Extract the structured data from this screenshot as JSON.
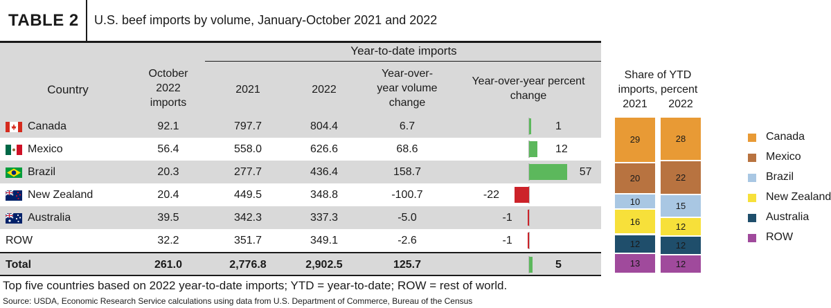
{
  "table_tag": "TABLE 2",
  "title": "U.S. beef imports by volume, January-October 2021 and 2022",
  "header": {
    "ytd_group": "Year-to-date imports",
    "country": "Country",
    "october": [
      "October",
      "2022",
      "imports"
    ],
    "y2021": "2021",
    "y2022": "2022",
    "volume_change": [
      "Year-over-",
      "year volume",
      "change"
    ],
    "pct_change": [
      "Year-over-year percent",
      "change"
    ]
  },
  "rows": [
    {
      "country": "Canada",
      "flag": "canada-flag-icon",
      "october": "92.1",
      "y2021": "797.7",
      "y2022": "804.4",
      "change": "6.7",
      "pct": 1,
      "pct_label": "1"
    },
    {
      "country": "Mexico",
      "flag": "mexico-flag-icon",
      "october": "56.4",
      "y2021": "558.0",
      "y2022": "626.6",
      "change": "68.6",
      "pct": 12,
      "pct_label": "12"
    },
    {
      "country": "Brazil",
      "flag": "brazil-flag-icon",
      "october": "20.3",
      "y2021": "277.7",
      "y2022": "436.4",
      "change": "158.7",
      "pct": 57,
      "pct_label": "57"
    },
    {
      "country": "New Zealand",
      "flag": "new-zealand-flag-icon",
      "october": "20.4",
      "y2021": "449.5",
      "y2022": "348.8",
      "change": "-100.7",
      "pct": -22,
      "pct_label": "-22"
    },
    {
      "country": "Australia",
      "flag": "australia-flag-icon",
      "october": "39.5",
      "y2021": "342.3",
      "y2022": "337.3",
      "change": "-5.0",
      "pct": -1,
      "pct_label": "-1"
    },
    {
      "country": "ROW",
      "flag": "",
      "october": "32.2",
      "y2021": "351.7",
      "y2022": "349.1",
      "change": "-2.6",
      "pct": -1,
      "pct_label": "-1"
    }
  ],
  "total": {
    "country": "Total",
    "october": "261.0",
    "y2021": "2,776.8",
    "y2022": "2,902.5",
    "change": "125.7",
    "pct": 5,
    "pct_label": "5"
  },
  "chart_data": [
    {
      "type": "bar",
      "orientation": "horizontal",
      "title": "Year-over-year percent change",
      "categories": [
        "Canada",
        "Mexico",
        "Brazil",
        "New Zealand",
        "Australia",
        "ROW",
        "Total"
      ],
      "values": [
        1,
        12,
        57,
        -22,
        -1,
        -1,
        5
      ],
      "colors": {
        "positive": "#5cb85c",
        "negative": "#cc2229"
      }
    },
    {
      "type": "bar",
      "stacked": true,
      "title": "Share of YTD imports, percent",
      "categories": [
        "2021",
        "2022"
      ],
      "series": [
        {
          "name": "Canada",
          "color": "#e89a35",
          "values": [
            29,
            28
          ]
        },
        {
          "name": "Mexico",
          "color": "#b87340",
          "values": [
            20,
            22
          ]
        },
        {
          "name": "Brazil",
          "color": "#a9c7e3",
          "values": [
            10,
            15
          ]
        },
        {
          "name": "New Zealand",
          "color": "#f7e03a",
          "values": [
            16,
            12
          ]
        },
        {
          "name": "Australia",
          "color": "#1f4e6b",
          "values": [
            12,
            12
          ]
        },
        {
          "name": "ROW",
          "color": "#a04a9c",
          "values": [
            13,
            12
          ]
        }
      ],
      "legend_position": "right"
    }
  ],
  "share_header": [
    "Share of YTD",
    "imports, percent"
  ],
  "share_years": [
    "2021",
    "2022"
  ],
  "footnote": "Top five countries based on 2022 year-to-date imports; YTD = year-to-date; ROW = rest of world.",
  "source": "Source: USDA, Economic Research Service calculations using data from U.S. Department of Commerce, Bureau of the Census"
}
